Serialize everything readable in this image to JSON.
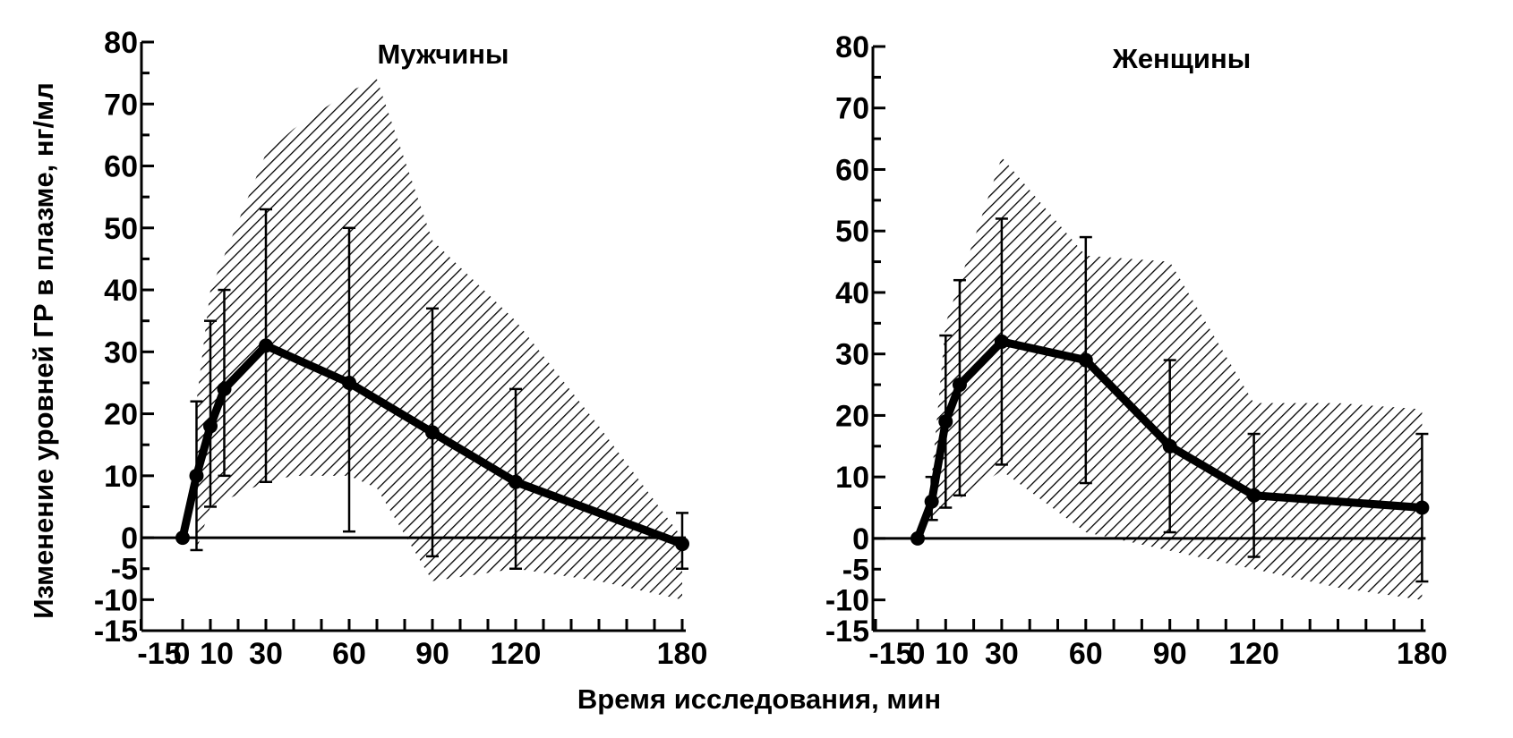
{
  "figure": {
    "ylabel": "Изменение уровней ГР в плазме, нг/мл",
    "xlabel": "Время исследования, мин"
  },
  "chart_data": [
    {
      "type": "line",
      "title": "Мужчины",
      "xlim": [
        -15,
        180
      ],
      "ylim": [
        -15,
        80
      ],
      "x_ticks": [
        -15,
        0,
        10,
        30,
        60,
        90,
        120,
        180
      ],
      "x_tick_labels": [
        "-15",
        "0",
        "10",
        "30",
        "60",
        "90",
        "120",
        "180"
      ],
      "y_ticks": [
        80,
        70,
        60,
        50,
        40,
        30,
        20,
        10,
        0,
        -5,
        -10,
        -15
      ],
      "y_tick_labels": [
        "80",
        "70",
        "60",
        "50",
        "40",
        "30",
        "20",
        "10",
        "0",
        "-5",
        "-10",
        "-15"
      ],
      "grid": false,
      "baseline": 0,
      "x": [
        0,
        5,
        10,
        15,
        30,
        60,
        90,
        120,
        180
      ],
      "values": [
        0,
        10,
        18,
        24,
        31,
        25,
        17,
        9,
        -1
      ],
      "error_low": [
        0,
        -2,
        5,
        10,
        9,
        1,
        -3,
        -5,
        -5
      ],
      "error_high": [
        0,
        22,
        35,
        40,
        53,
        50,
        37,
        24,
        4
      ],
      "band_x": [
        5,
        10,
        30,
        40,
        60,
        70,
        90,
        120,
        150,
        180
      ],
      "band_upper": [
        22,
        40,
        62,
        66,
        72,
        74,
        48,
        35,
        18,
        0
      ],
      "band_lower": [
        -2,
        5,
        9,
        10,
        10,
        8,
        -7,
        -5,
        -7,
        -10
      ]
    },
    {
      "type": "line",
      "title": "Женщины",
      "xlim": [
        -15,
        180
      ],
      "ylim": [
        -15,
        80
      ],
      "x_ticks": [
        -15,
        0,
        10,
        30,
        60,
        90,
        120,
        180
      ],
      "x_tick_labels": [
        "-15",
        "0",
        "10",
        "30",
        "60",
        "90",
        "120",
        "180"
      ],
      "y_ticks": [
        80,
        70,
        60,
        50,
        40,
        30,
        20,
        10,
        0,
        -5,
        -10,
        -15
      ],
      "y_tick_labels": [
        "80",
        "70",
        "60",
        "50",
        "40",
        "30",
        "20",
        "10",
        "0",
        "-5",
        "-10",
        "-15"
      ],
      "grid": false,
      "baseline": 0,
      "x": [
        0,
        5,
        10,
        15,
        30,
        60,
        90,
        120,
        180
      ],
      "values": [
        0,
        6,
        19,
        25,
        32,
        29,
        15,
        7,
        5
      ],
      "error_low": [
        0,
        3,
        5,
        7,
        12,
        9,
        1,
        -3,
        -7
      ],
      "error_high": [
        0,
        10,
        33,
        42,
        52,
        49,
        29,
        17,
        17
      ],
      "band_x": [
        5,
        10,
        30,
        60,
        90,
        120,
        150,
        180
      ],
      "band_upper": [
        10,
        35,
        62,
        46,
        45,
        22,
        22,
        21
      ],
      "band_lower": [
        3,
        5,
        11,
        1,
        -2,
        -5,
        -8,
        -10
      ]
    }
  ]
}
